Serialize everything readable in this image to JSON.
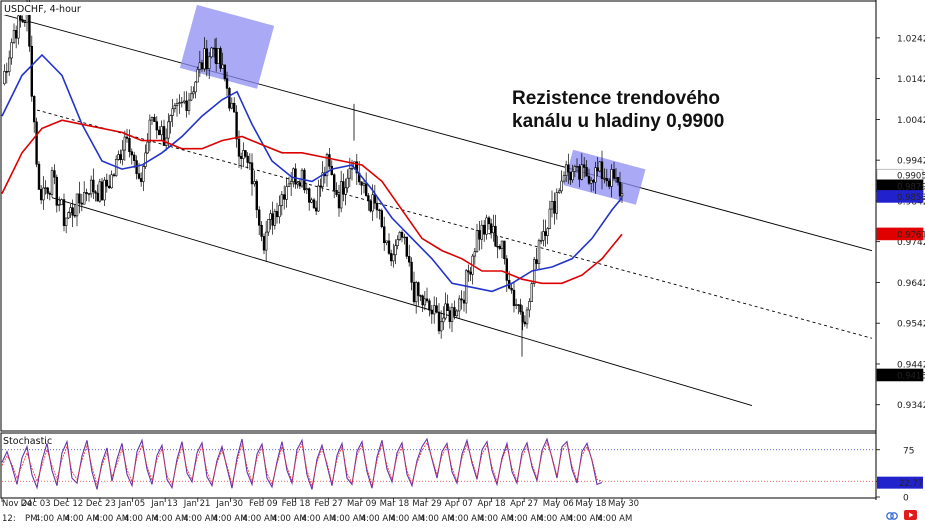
{
  "chart_data": [
    {
      "type": "candlestick",
      "symbol_label": "USDCHF, 4-hour",
      "annotation": [
        "Rezistence trendového",
        "kanálu u hladiny 0,9900"
      ],
      "ylim": [
        0.928,
        1.033
      ],
      "y_ticks": [
        "1.0242",
        "1.0142",
        "1.0042",
        "0.9942",
        "0.9842",
        "0.9742",
        "0.9642",
        "0.9542",
        "0.9442",
        "0.9342"
      ],
      "price_labels": [
        {
          "value": "0.9905",
          "role": "ask",
          "bg": "#ffffff",
          "fg": "#000000"
        },
        {
          "value": "0.9879",
          "role": "bid",
          "bg": "#000000",
          "fg": "#ffffff"
        },
        {
          "value": "0.9853",
          "role": "ma-fast",
          "bg": "#2222cc",
          "fg": "#ffffff"
        },
        {
          "value": "0.9761",
          "role": "ma-slow",
          "bg": "#e00000",
          "fg": "#ffffff"
        },
        {
          "value": "0.9415",
          "role": "channel",
          "bg": "#000000",
          "fg": "#ffffff"
        }
      ],
      "x_labels": [
        "Nov 24",
        "Dec 03",
        "Dec 12",
        "Dec 23",
        "Jan 05",
        "Jan 13",
        "Jan 21",
        "Jan 30",
        "Feb 09",
        "Feb 18",
        "Feb 27",
        "Mar 09",
        "Mar 18",
        "Mar 29",
        "Apr 07",
        "Apr 18",
        "Apr 27",
        "May 06",
        "May 18",
        "May 30"
      ],
      "bottom_time_labels": [
        "12:",
        "PM",
        "4:00 AM",
        "4:00 AM",
        "4:00 AM",
        "4:00 AM",
        "4:00 AM",
        "4:00 AM",
        "4:00 AM",
        "4:00 AM",
        "4:00 AM",
        "4:00 AM",
        "4:00 AM",
        "4:00 AM",
        "4:00 AM",
        "4:00 AM",
        "4:00 AM",
        "4:00 AM",
        "4:00 AM",
        "4:00 AM",
        "4:00 AM",
        "4:00 AM"
      ],
      "series": [
        {
          "name": "Close",
          "color": "#000000",
          "x": [
            0,
            12,
            25,
            37,
            50,
            62,
            75,
            87,
            100,
            112,
            125,
            137,
            150,
            162,
            175,
            187,
            200,
            212,
            225,
            237,
            250,
            262,
            275,
            287,
            300,
            312,
            325,
            337,
            350,
            362,
            375,
            387,
            400,
            412,
            425,
            437,
            450,
            462,
            475,
            487,
            500,
            512,
            525,
            537,
            550,
            562,
            575,
            587,
            600,
            612,
            620
          ],
          "values": [
            1.013,
            1.026,
            1.03,
            0.986,
            0.989,
            0.98,
            0.983,
            0.988,
            0.986,
            0.991,
            1.002,
            0.987,
            1.005,
            1.0,
            1.006,
            1.01,
            1.018,
            1.022,
            1.012,
            0.998,
            0.99,
            0.975,
            0.983,
            0.99,
            0.991,
            0.983,
            0.993,
            0.985,
            0.995,
            0.986,
            0.982,
            0.969,
            0.975,
            0.962,
            0.958,
            0.955,
            0.957,
            0.962,
            0.976,
            0.978,
            0.972,
            0.96,
            0.956,
            0.975,
            0.982,
            0.992,
            0.99,
            0.991,
            0.991,
            0.989,
            0.986
          ]
        },
        {
          "name": "MA fast",
          "color": "#2233cc",
          "x": [
            0,
            20,
            40,
            60,
            80,
            100,
            120,
            140,
            160,
            180,
            200,
            220,
            235,
            250,
            270,
            290,
            310,
            330,
            350,
            370,
            390,
            410,
            430,
            450,
            470,
            490,
            510,
            530,
            550,
            570,
            590,
            610,
            620
          ],
          "values": [
            1.005,
            1.015,
            1.02,
            1.015,
            1.003,
            0.994,
            0.992,
            0.993,
            0.996,
            1.0,
            1.005,
            1.009,
            1.011,
            1.003,
            0.994,
            0.99,
            0.989,
            0.992,
            0.993,
            0.987,
            0.98,
            0.975,
            0.97,
            0.964,
            0.963,
            0.962,
            0.964,
            0.967,
            0.968,
            0.97,
            0.975,
            0.982,
            0.985
          ]
        },
        {
          "name": "MA slow",
          "color": "#dd0000",
          "x": [
            0,
            20,
            40,
            60,
            80,
            100,
            120,
            140,
            160,
            180,
            200,
            220,
            240,
            260,
            280,
            300,
            320,
            340,
            360,
            380,
            400,
            420,
            440,
            460,
            480,
            500,
            520,
            540,
            560,
            580,
            600,
            620
          ],
          "values": [
            0.986,
            0.996,
            1.002,
            1.004,
            1.003,
            1.002,
            1.001,
            0.999,
            0.999,
            0.997,
            0.997,
            0.999,
            1.0,
            0.998,
            0.996,
            0.996,
            0.995,
            0.994,
            0.993,
            0.989,
            0.982,
            0.975,
            0.972,
            0.97,
            0.967,
            0.967,
            0.965,
            0.964,
            0.964,
            0.966,
            0.97,
            0.976
          ]
        }
      ],
      "channel": {
        "upper": {
          "x": [
            0,
            870
          ],
          "values": [
            1.03,
            0.972
          ]
        },
        "middle": {
          "x": [
            35,
            870
          ],
          "values": [
            1.0065,
            0.9505
          ]
        },
        "lower": {
          "x": [
            50,
            750
          ],
          "values": [
            0.985,
            0.934
          ]
        }
      },
      "highlight_zones": [
        {
          "x": [
            185,
            265
          ],
          "values": [
            1.014,
            1.03
          ]
        },
        {
          "x": [
            565,
            640
          ],
          "values": [
            0.9855,
            0.9945
          ]
        }
      ]
    },
    {
      "type": "line",
      "title": "Stochastic",
      "ylim": [
        0,
        100
      ],
      "y_ticks": [
        "75",
        "25",
        "0"
      ],
      "levels": [
        25,
        75
      ],
      "value_label": "22.77",
      "series": [
        {
          "name": "%K",
          "color": "#6633aa",
          "x_step": 5,
          "values": [
            55,
            72,
            48,
            20,
            62,
            80,
            35,
            15,
            58,
            85,
            42,
            18,
            70,
            88,
            30,
            22,
            65,
            90,
            40,
            12,
            55,
            78,
            25,
            60,
            85,
            36,
            18,
            72,
            90,
            44,
            20,
            66,
            82,
            28,
            15,
            60,
            88,
            38,
            24,
            70,
            86,
            32,
            18,
            58,
            80,
            46,
            14,
            62,
            92,
            40,
            20,
            68,
            84,
            30,
            16,
            56,
            88,
            42,
            22,
            75,
            90,
            35,
            12,
            60,
            82,
            50,
            18,
            66,
            85,
            30,
            20,
            72,
            88,
            40,
            14,
            64,
            90,
            44,
            24,
            70,
            86,
            36,
            18,
            58,
            80,
            92,
            60,
            30,
            72,
            85,
            40,
            22,
            68,
            90,
            54,
            28,
            75,
            88,
            42,
            20,
            62,
            85,
            40,
            22,
            70,
            86,
            48,
            26,
            74,
            92,
            62,
            30,
            80,
            88,
            44,
            22,
            72,
            85,
            58,
            20,
            23
          ]
        },
        {
          "name": "%D",
          "color": "#ee3333",
          "x_step": 5,
          "values": [
            50,
            65,
            52,
            30,
            50,
            70,
            45,
            25,
            50,
            75,
            50,
            28,
            60,
            80,
            40,
            28,
            58,
            82,
            48,
            20,
            50,
            70,
            32,
            52,
            76,
            44,
            24,
            64,
            82,
            50,
            26,
            60,
            76,
            34,
            20,
            55,
            80,
            44,
            28,
            62,
            80,
            40,
            22,
            54,
            74,
            50,
            20,
            56,
            84,
            48,
            24,
            62,
            78,
            38,
            20,
            52,
            80,
            48,
            26,
            68,
            84,
            42,
            18,
            55,
            76,
            54,
            22,
            60,
            80,
            38,
            22,
            66,
            82,
            46,
            18,
            58,
            84,
            50,
            28,
            64,
            80,
            42,
            22,
            54,
            74,
            86,
            62,
            36,
            66,
            80,
            46,
            26,
            62,
            84,
            58,
            32,
            68,
            82,
            48,
            24,
            58,
            80,
            46,
            26,
            64,
            80,
            52,
            30,
            68,
            86,
            64,
            34,
            74,
            84,
            50,
            26,
            66,
            80,
            60,
            28,
            25
          ]
        }
      ]
    }
  ]
}
